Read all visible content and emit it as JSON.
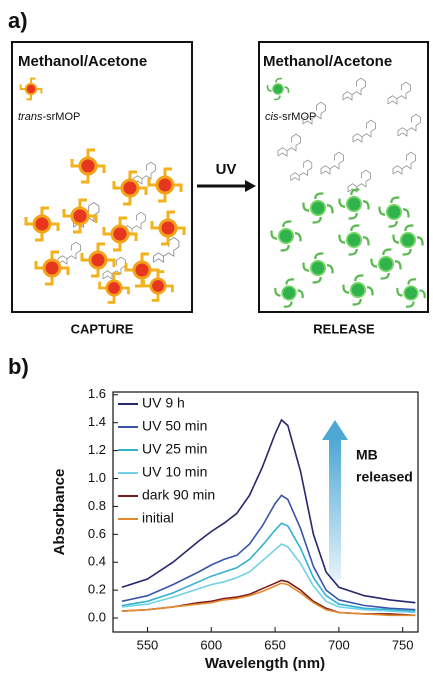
{
  "panel_a": {
    "label": "a)",
    "left_box": {
      "title": "Methanol/Acetone",
      "legend_prefix": "trans",
      "legend_suffix": "-srMOP",
      "caption": "CAPTURE"
    },
    "arrow_label": "UV",
    "right_box": {
      "title": "Methanol/Acetone",
      "legend_prefix": "cis",
      "legend_suffix": "-srMOP",
      "caption": "RELEASE"
    }
  },
  "chart_data": {
    "type": "line",
    "label": "b)",
    "x_label": "Wavelength (nm)",
    "y_label": "Absorbance",
    "annotation_lines": [
      "MB",
      "released"
    ],
    "x": [
      530,
      550,
      570,
      590,
      600,
      610,
      620,
      630,
      640,
      650,
      655,
      660,
      670,
      680,
      690,
      700,
      720,
      740,
      760
    ],
    "series": [
      {
        "name": "UV 9 h",
        "color": "#27276b",
        "values": [
          0.22,
          0.28,
          0.4,
          0.55,
          0.62,
          0.68,
          0.75,
          0.88,
          1.08,
          1.32,
          1.42,
          1.38,
          1.05,
          0.6,
          0.33,
          0.22,
          0.16,
          0.13,
          0.11
        ]
      },
      {
        "name": "UV 50 min",
        "color": "#3a55a8",
        "values": [
          0.12,
          0.16,
          0.24,
          0.33,
          0.38,
          0.42,
          0.45,
          0.53,
          0.66,
          0.82,
          0.88,
          0.85,
          0.64,
          0.37,
          0.2,
          0.13,
          0.09,
          0.07,
          0.06
        ]
      },
      {
        "name": "UV 25 min",
        "color": "#34b0cf",
        "values": [
          0.09,
          0.12,
          0.18,
          0.26,
          0.3,
          0.33,
          0.36,
          0.42,
          0.52,
          0.63,
          0.68,
          0.66,
          0.5,
          0.29,
          0.16,
          0.1,
          0.07,
          0.06,
          0.05
        ]
      },
      {
        "name": "UV 10 min",
        "color": "#72d2e3",
        "values": [
          0.08,
          0.1,
          0.15,
          0.21,
          0.24,
          0.26,
          0.29,
          0.33,
          0.41,
          0.49,
          0.53,
          0.51,
          0.39,
          0.23,
          0.12,
          0.08,
          0.06,
          0.05,
          0.04
        ]
      },
      {
        "name": "dark 90 min",
        "color": "#7a1c1c",
        "values": [
          0.05,
          0.06,
          0.08,
          0.11,
          0.12,
          0.14,
          0.15,
          0.17,
          0.21,
          0.25,
          0.27,
          0.26,
          0.2,
          0.12,
          0.07,
          0.04,
          0.03,
          0.03,
          0.02
        ]
      },
      {
        "name": "initial",
        "color": "#e38a2e",
        "values": [
          0.05,
          0.06,
          0.08,
          0.1,
          0.11,
          0.13,
          0.14,
          0.16,
          0.19,
          0.23,
          0.25,
          0.24,
          0.18,
          0.11,
          0.06,
          0.04,
          0.03,
          0.02,
          0.02
        ]
      }
    ],
    "xlim": [
      523,
      762
    ],
    "xticks": [
      550,
      600,
      650,
      700,
      750
    ],
    "ylim": [
      -0.1,
      1.62
    ],
    "yticks": [
      {
        "value": 0,
        "label": "0.0"
      },
      0.2,
      0.4,
      0.6,
      0.8,
      {
        "value": 1,
        "label": "1.0"
      },
      1.2,
      1.4,
      1.6
    ],
    "legend": "upper left",
    "grid": false
  }
}
